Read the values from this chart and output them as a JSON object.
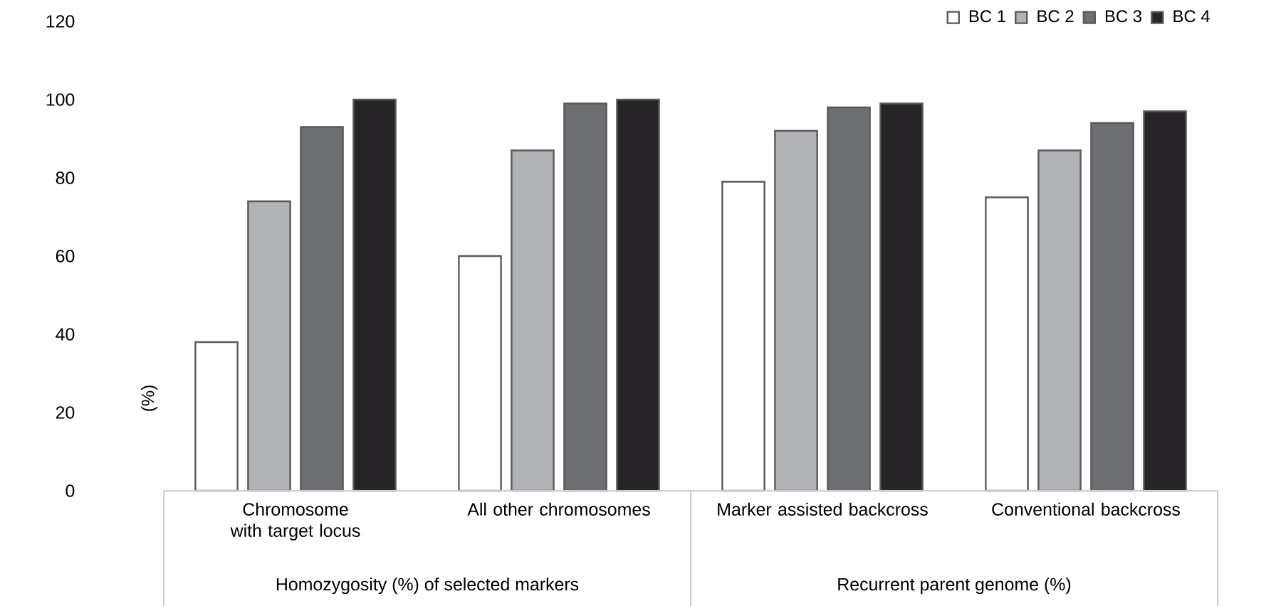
{
  "chart_data": {
    "type": "bar",
    "ylabel": "(%)",
    "categories": [
      "Chromosome with target locus",
      "All other chromosomes",
      "Marker assisted backcross",
      "Conventional backcross"
    ],
    "annotations": [
      "Homozygosity (%) of selected markers",
      "Recurrent parent genome (%)"
    ],
    "series": [
      {
        "name": "BC 1",
        "color": "#ffffff",
        "values": [
          38,
          60,
          79,
          75
        ]
      },
      {
        "name": "BC 2",
        "color": "#b2b3b6",
        "values": [
          74,
          87,
          92,
          87
        ]
      },
      {
        "name": "BC 3",
        "color": "#6e6f73",
        "values": [
          93,
          99,
          98,
          94
        ]
      },
      {
        "name": "BC 4",
        "color": "#262426",
        "values": [
          100,
          100,
          99,
          97
        ]
      }
    ],
    "ylim": [
      0,
      120
    ],
    "yticks": [
      0,
      20,
      40,
      60,
      80,
      100,
      120
    ],
    "grid": false,
    "legend": "top right"
  }
}
